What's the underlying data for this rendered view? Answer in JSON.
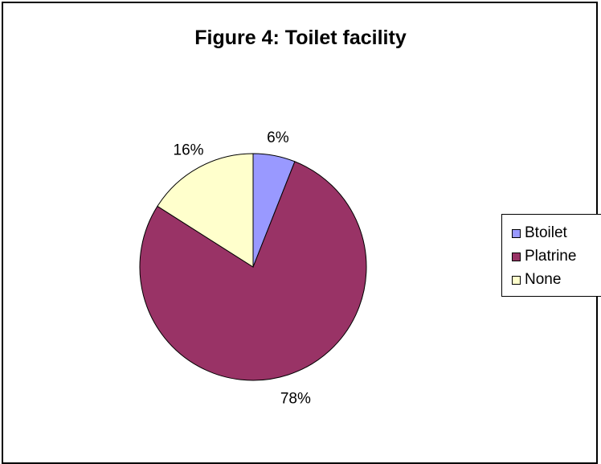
{
  "chart_data": {
    "type": "pie",
    "title": "Figure 4: Toilet facility",
    "categories": [
      "Btoilet",
      "Platrine",
      "None"
    ],
    "values": [
      6,
      78,
      16
    ],
    "labels": [
      "6%",
      "78%",
      "16%"
    ],
    "colors": [
      "#9999FF",
      "#993366",
      "#FFFFCC"
    ],
    "legend": "right"
  }
}
